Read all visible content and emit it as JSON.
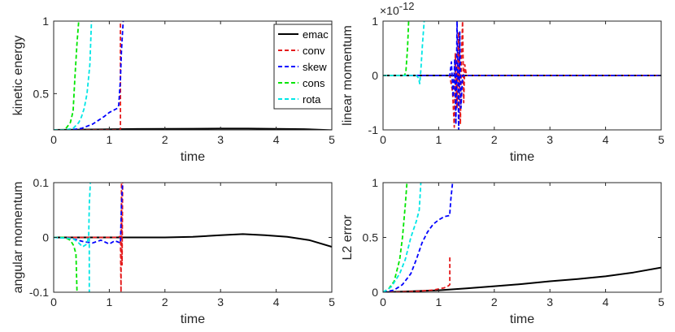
{
  "chart_data": [
    {
      "type": "line",
      "xlabel": "time",
      "ylabel": "kinetic energy",
      "xlim": [
        0,
        5
      ],
      "ylim": [
        0.25,
        1
      ],
      "xticks": [
        "0",
        "1",
        "2",
        "3",
        "4",
        "5"
      ],
      "yticks": [
        "0.5",
        "1"
      ],
      "legend": [
        "emac",
        "conv",
        "skew",
        "cons",
        "rota"
      ],
      "series": [
        {
          "name": "emac",
          "color": "#000000",
          "dash": "solid",
          "x": [
            0,
            0.5,
            1,
            1.5,
            2,
            2.5,
            3,
            3.5,
            4,
            4.5,
            5
          ],
          "y": [
            0.25,
            0.252,
            0.254,
            0.256,
            0.257,
            0.258,
            0.259,
            0.259,
            0.257,
            0.255,
            0.248
          ]
        },
        {
          "name": "conv",
          "color": "#e41a1c",
          "dash": "dashed",
          "x": [
            0,
            0.3,
            0.6,
            0.9,
            1.2,
            1.2
          ],
          "y": [
            0.25,
            0.25,
            0.25,
            0.25,
            0.25,
            1
          ]
        },
        {
          "name": "skew",
          "color": "#0000ff",
          "dash": "dashed",
          "x": [
            0,
            0.3,
            0.5,
            0.7,
            0.9,
            1.0,
            1.1,
            1.15,
            1.17,
            1.2,
            1.22,
            1.25
          ],
          "y": [
            0.25,
            0.25,
            0.26,
            0.29,
            0.34,
            0.37,
            0.39,
            0.4,
            0.42,
            0.6,
            0.8,
            1
          ]
        },
        {
          "name": "cons",
          "color": "#00e600",
          "dash": "dashed",
          "x": [
            0,
            0.2,
            0.3,
            0.35,
            0.38,
            0.42,
            0.45
          ],
          "y": [
            0.25,
            0.25,
            0.3,
            0.38,
            0.6,
            0.85,
            1
          ]
        },
        {
          "name": "rota",
          "color": "#00e6e6",
          "dash": "dashed",
          "x": [
            0,
            0.2,
            0.35,
            0.45,
            0.5,
            0.55,
            0.6,
            0.65,
            0.68
          ],
          "y": [
            0.25,
            0.25,
            0.26,
            0.3,
            0.34,
            0.4,
            0.5,
            0.7,
            1
          ]
        }
      ]
    },
    {
      "type": "line",
      "xlabel": "time",
      "ylabel": "linear momentum",
      "xlim": [
        0,
        5
      ],
      "ylim": [
        -1,
        1
      ],
      "xticks": [
        "0",
        "1",
        "2",
        "3",
        "4",
        "5"
      ],
      "yticks": [
        "-1",
        "0",
        "1"
      ],
      "multiplier": "×10",
      "multiplier_exp": "-12",
      "series": [
        {
          "name": "emac",
          "color": "#000000",
          "dash": "solid",
          "x": [
            0,
            5
          ],
          "y": [
            0,
            0
          ]
        },
        {
          "name": "conv",
          "color": "#e41a1c",
          "dash": "dashed",
          "x": [
            0,
            1.2,
            1.25,
            1.28,
            1.3,
            1.33,
            1.36,
            1.39,
            1.41,
            1.43,
            1.45,
            1.47,
            1.5,
            5
          ],
          "y": [
            0,
            0,
            -0.3,
            -0.95,
            0.4,
            -0.6,
            0.8,
            -0.9,
            0.3,
            1,
            -0.5,
            0.2,
            0,
            0
          ]
        },
        {
          "name": "skew",
          "color": "#0000ff",
          "dash": "dashed",
          "x": [
            0,
            1.2,
            1.23,
            1.26,
            1.29,
            1.31,
            1.33,
            1.36,
            1.38,
            1.4,
            1.43,
            5
          ],
          "y": [
            0,
            0,
            0.25,
            -0.4,
            0.3,
            -0.9,
            1,
            -1,
            0.8,
            -0.6,
            0,
            0
          ]
        },
        {
          "name": "cons",
          "color": "#00e600",
          "dash": "dashed",
          "x": [
            0,
            0.38,
            0.41,
            0.44,
            0.46
          ],
          "y": [
            0,
            0,
            0.05,
            0.5,
            1
          ]
        },
        {
          "name": "rota",
          "color": "#00e6e6",
          "dash": "dashed",
          "x": [
            0,
            0.6,
            0.64,
            0.66,
            0.68,
            0.71,
            0.74
          ],
          "y": [
            0,
            0,
            -0.05,
            -0.15,
            0.1,
            0.6,
            1
          ]
        }
      ]
    },
    {
      "type": "line",
      "xlabel": "time",
      "ylabel": "angular momentum",
      "xlim": [
        0,
        5
      ],
      "ylim": [
        -0.1,
        0.1
      ],
      "xticks": [
        "0",
        "1",
        "2",
        "3",
        "4",
        "5"
      ],
      "yticks": [
        "-0.1",
        "0",
        "0.1"
      ],
      "series": [
        {
          "name": "emac",
          "color": "#000000",
          "dash": "solid",
          "x": [
            0,
            0.5,
            1,
            1.5,
            2,
            2.5,
            3,
            3.4,
            3.8,
            4.2,
            4.6,
            5
          ],
          "y": [
            0,
            0,
            0,
            0,
            0,
            0.001,
            0.004,
            0.006,
            0.004,
            0.001,
            -0.005,
            -0.017
          ]
        },
        {
          "name": "conv",
          "color": "#e41a1c",
          "dash": "dashed",
          "x": [
            0,
            1.15,
            1.2,
            1.21,
            1.22,
            1.23,
            1.24
          ],
          "y": [
            0,
            0,
            0.002,
            -0.1,
            0.1,
            -0.05,
            0.1
          ]
        },
        {
          "name": "skew",
          "color": "#0000ff",
          "dash": "dashed",
          "x": [
            0,
            0.25,
            0.4,
            0.55,
            0.7,
            0.85,
            1.0,
            1.1,
            1.2,
            1.22,
            1.24
          ],
          "y": [
            0,
            -0.001,
            -0.004,
            -0.008,
            -0.01,
            -0.005,
            -0.012,
            -0.006,
            -0.01,
            0.06,
            0.1
          ]
        },
        {
          "name": "cons",
          "color": "#00e600",
          "dash": "dashed",
          "x": [
            0,
            0.2,
            0.3,
            0.36,
            0.4,
            0.42
          ],
          "y": [
            0,
            0,
            -0.005,
            -0.015,
            -0.03,
            -0.1
          ]
        },
        {
          "name": "rota",
          "color": "#00e6e6",
          "dash": "dashed",
          "x": [
            0,
            0.35,
            0.45,
            0.52,
            0.6,
            0.63,
            0.64,
            0.66
          ],
          "y": [
            0,
            -0.002,
            -0.01,
            -0.017,
            -0.012,
            0.005,
            0.06,
            0.1
          ]
        },
        {
          "name": "rota2",
          "color": "#00e6e6",
          "dash": "dashed",
          "x": [
            0.64,
            0.64
          ],
          "y": [
            0.0,
            -0.1
          ]
        }
      ]
    },
    {
      "type": "line",
      "xlabel": "time",
      "ylabel": "L2 error",
      "xlim": [
        0,
        5
      ],
      "ylim": [
        0,
        1
      ],
      "xticks": [
        "0",
        "1",
        "2",
        "3",
        "4",
        "5"
      ],
      "yticks": [
        "0",
        "0.5",
        "1"
      ],
      "series": [
        {
          "name": "emac",
          "color": "#000000",
          "dash": "solid",
          "x": [
            0,
            0.5,
            1,
            1.5,
            2,
            2.5,
            3,
            3.5,
            4,
            4.5,
            5
          ],
          "y": [
            0,
            0.008,
            0.018,
            0.035,
            0.055,
            0.075,
            0.1,
            0.12,
            0.145,
            0.18,
            0.225
          ]
        },
        {
          "name": "conv",
          "color": "#e41a1c",
          "dash": "dashed",
          "x": [
            0,
            0.3,
            0.6,
            0.9,
            1.1,
            1.18,
            1.2,
            1.2
          ],
          "y": [
            0,
            0.002,
            0.008,
            0.02,
            0.04,
            0.06,
            0.07,
            0.33
          ]
        },
        {
          "name": "skew",
          "color": "#0000ff",
          "dash": "dashed",
          "x": [
            0,
            0.2,
            0.35,
            0.5,
            0.6,
            0.7,
            0.8,
            0.9,
            1.0,
            1.1,
            1.2,
            1.2,
            1.22,
            1.25
          ],
          "y": [
            0,
            0.02,
            0.07,
            0.17,
            0.3,
            0.45,
            0.55,
            0.62,
            0.66,
            0.69,
            0.7,
            0.72,
            0.85,
            1
          ]
        },
        {
          "name": "cons",
          "color": "#00e600",
          "dash": "dashed",
          "x": [
            0,
            0.1,
            0.2,
            0.3,
            0.35,
            0.4,
            0.43
          ],
          "y": [
            0,
            0.03,
            0.1,
            0.3,
            0.5,
            0.8,
            1
          ]
        },
        {
          "name": "rota",
          "color": "#00e6e6",
          "dash": "dashed",
          "x": [
            0,
            0.15,
            0.3,
            0.4,
            0.5,
            0.6,
            0.65,
            0.68
          ],
          "y": [
            0,
            0.05,
            0.17,
            0.3,
            0.5,
            0.65,
            0.75,
            1
          ]
        }
      ]
    }
  ]
}
